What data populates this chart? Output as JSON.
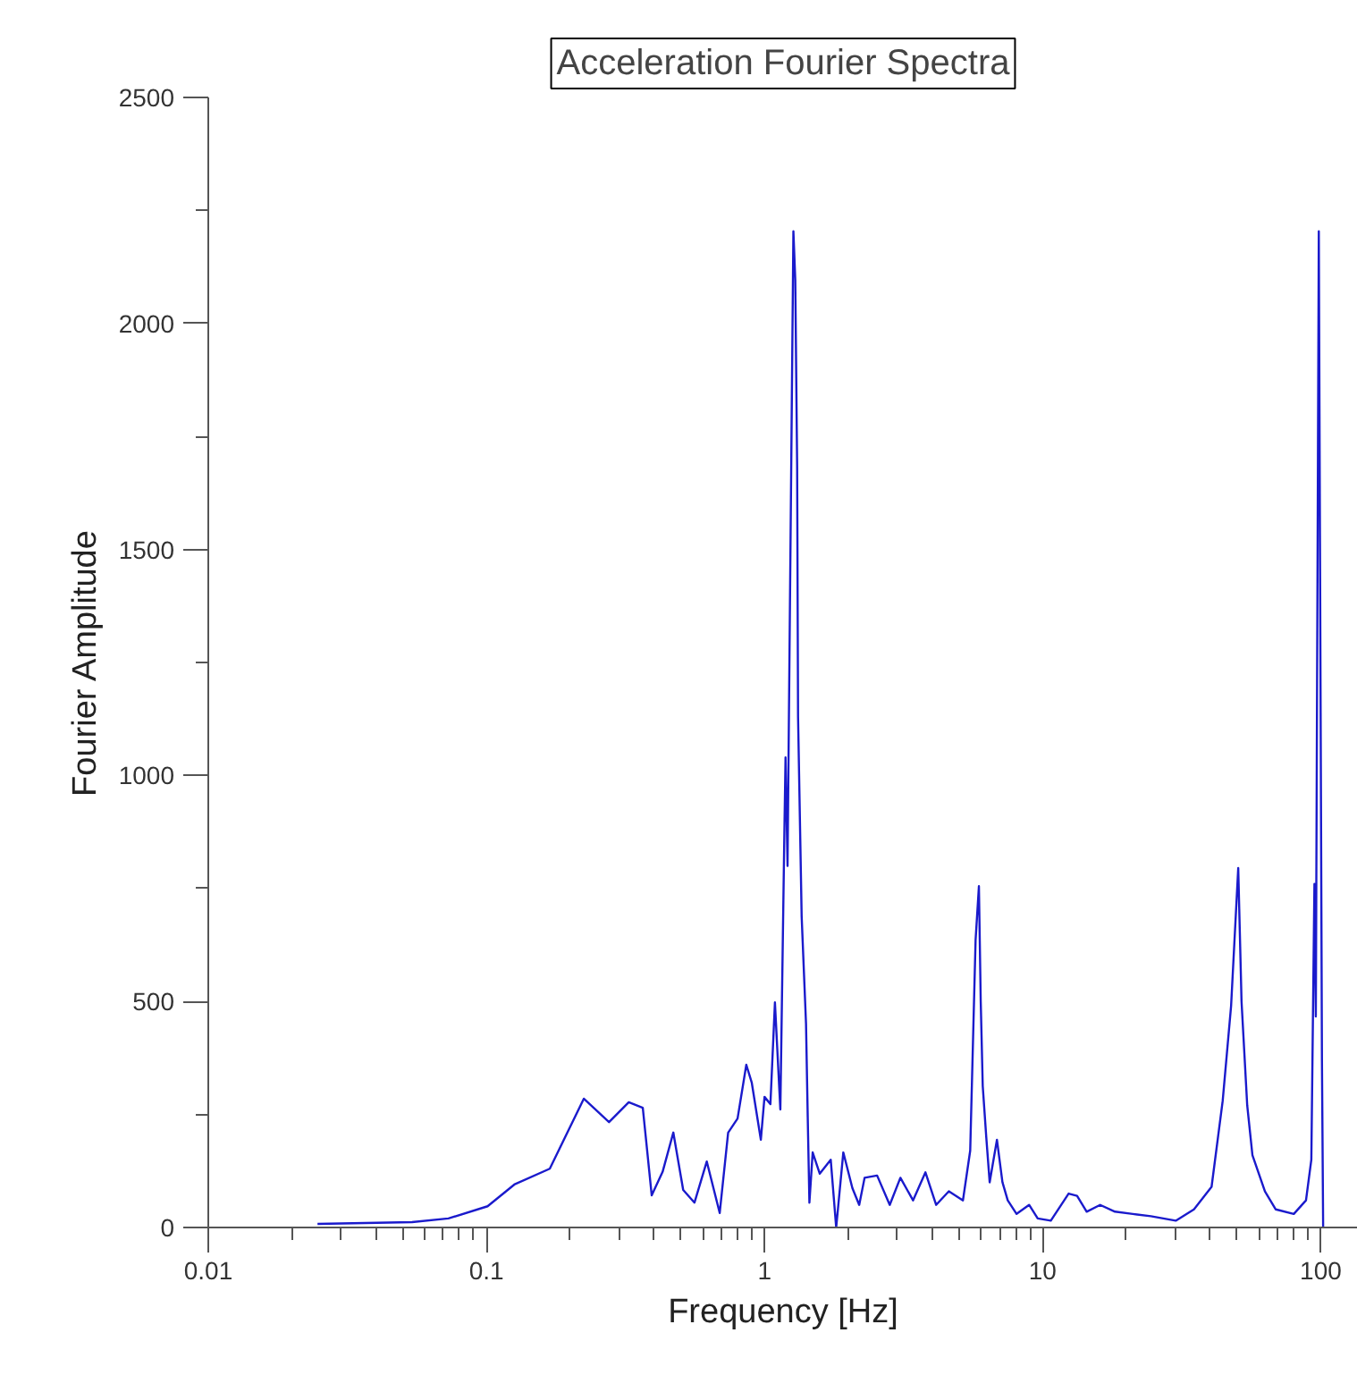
{
  "chart_data": {
    "type": "line",
    "title": "Acceleration Fourier Spectra",
    "xlabel": "Frequency [Hz]",
    "ylabel": "Fourier Amplitude",
    "log": "x",
    "grid": false,
    "marker": "none",
    "line_style": "solid",
    "xlim": [
      0.01,
      136
    ],
    "xticks": [
      0.01,
      0.1,
      1,
      10,
      100
    ],
    "ylim": [
      0,
      2500
    ],
    "yticks": [
      0,
      500,
      1000,
      1500,
      2000,
      2500
    ],
    "series": [
      {
        "color": "#1a1acc",
        "x": [
          0.0247,
          0.054,
          0.073,
          0.101,
          0.126,
          0.169,
          0.224,
          0.276,
          0.325,
          0.365,
          0.393,
          0.43,
          0.47,
          0.51,
          0.56,
          0.62,
          0.69,
          0.74,
          0.8,
          0.86,
          0.9,
          0.97,
          1.0,
          1.05,
          1.09,
          1.14,
          1.18,
          1.19,
          1.21,
          1.27,
          1.29,
          1.31,
          1.32,
          1.36,
          1.41,
          1.43,
          1.45,
          1.49,
          1.58,
          1.73,
          1.81,
          1.92,
          2.07,
          2.19,
          2.29,
          2.54,
          2.82,
          3.08,
          3.42,
          3.79,
          4.14,
          4.6,
          5.17,
          5.49,
          5.74,
          5.9,
          5.99,
          6.09,
          6.27,
          6.45,
          6.85,
          7.17,
          7.49,
          8.06,
          8.94,
          9.6,
          10.7,
          12.4,
          13.3,
          14.4,
          16.1,
          18.2,
          21.1,
          24.5,
          30.1,
          35,
          40.5,
          44.4,
          47.6,
          50.5,
          51.9,
          54.4,
          56.8,
          63,
          68.9,
          80,
          88.5,
          92.5,
          94.9,
          96,
          98.4,
          101,
          102
        ],
        "values": [
          8,
          12,
          20,
          47,
          95,
          130,
          285,
          233,
          277,
          265,
          71,
          123,
          210,
          83,
          55,
          146,
          32,
          210,
          241,
          360,
          320,
          194,
          289,
          273,
          498,
          261,
          894,
          1040,
          800,
          2204,
          2096,
          1685,
          1131,
          688,
          451,
          245,
          55,
          166,
          119,
          150,
          0,
          166,
          87,
          50,
          110,
          115,
          50,
          110,
          60,
          122,
          50,
          80,
          60,
          170,
          636,
          755,
          500,
          313,
          200,
          100,
          194,
          100,
          60,
          30,
          50,
          20,
          15,
          75,
          70,
          35,
          50,
          35,
          30,
          25,
          15,
          40,
          90,
          280,
          490,
          795,
          500,
          270,
          160,
          80,
          40,
          30,
          60,
          150,
          760,
          467,
          2204,
          368,
          0
        ]
      }
    ]
  }
}
